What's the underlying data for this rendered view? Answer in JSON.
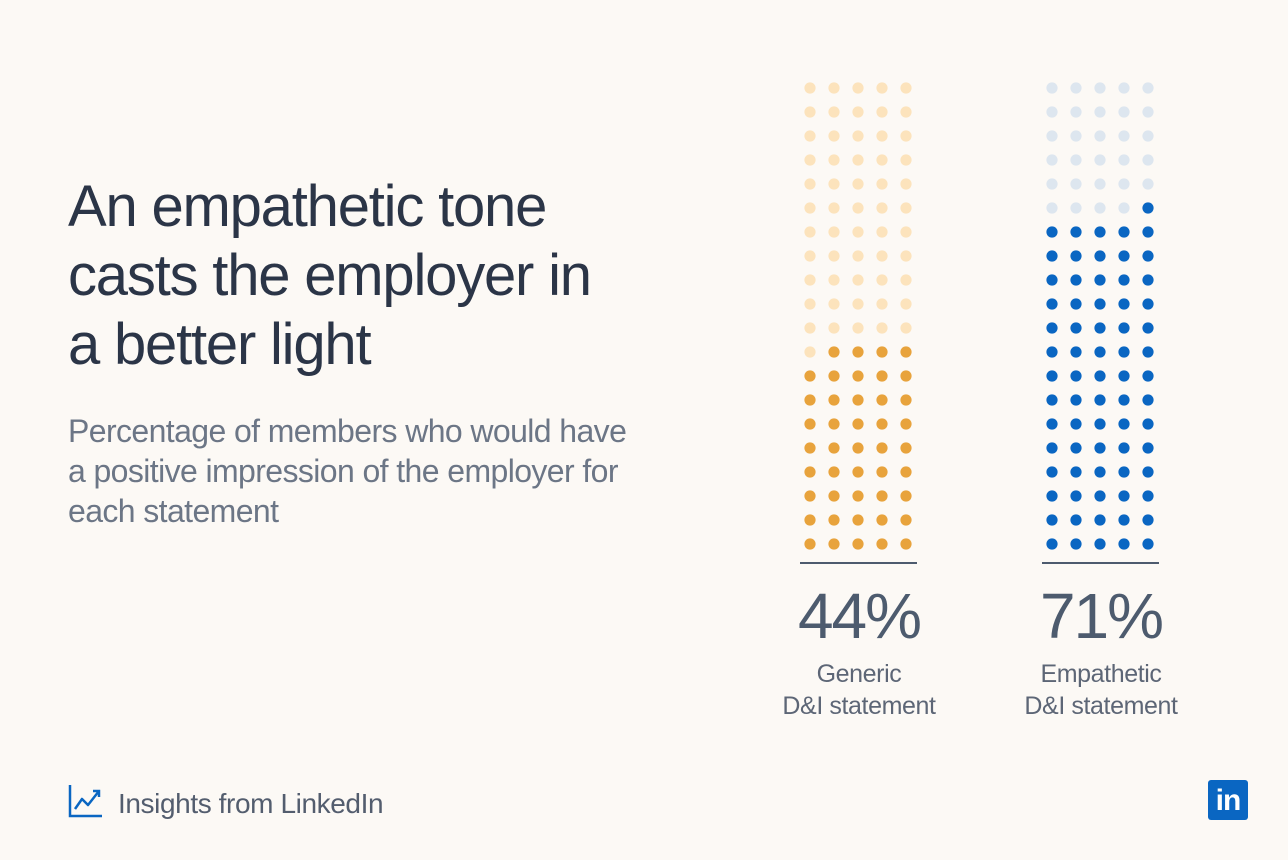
{
  "title": "An empathetic tone casts the employer in a better light",
  "subtitle": "Percentage of members who would have a positive impression of the employer for each statement",
  "chart_data": {
    "type": "bar",
    "categories": [
      "Generic D&I statement",
      "Empathetic D&I statement"
    ],
    "values": [
      44,
      71
    ],
    "value_labels": [
      "44%",
      "71%"
    ],
    "category_lines": [
      [
        "Generic",
        "D&I statement"
      ],
      [
        "Empathetic",
        "D&I statement"
      ]
    ],
    "unit": "%",
    "ylim": [
      0,
      100
    ],
    "representation": "dot-grid 5x20 (100 dots per column, filled from bottom)",
    "colors": {
      "generic_filled": "#e8a33c",
      "generic_empty": "#fce3bc",
      "empathetic_filled": "#0a66c2",
      "empathetic_empty": "#dde6ef"
    }
  },
  "footer": {
    "brand_text": "Insights from LinkedIn",
    "brand_icon": "line-chart-icon",
    "logo_text": "in",
    "logo_icon": "linkedin-logo-icon"
  }
}
